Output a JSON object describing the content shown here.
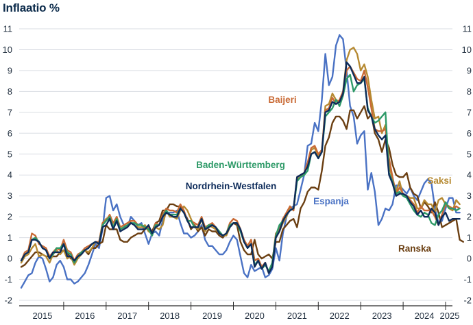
{
  "chart_data": {
    "type": "line",
    "title": "Inflaatio %",
    "xlabel": "",
    "ylabel": "",
    "ylim": [
      -2,
      11
    ],
    "yticks": [
      -2,
      -1,
      0,
      1,
      2,
      3,
      4,
      5,
      6,
      7,
      8,
      9,
      10,
      11
    ],
    "ytick_labels": [
      "-2",
      "-1",
      "0",
      "1",
      "2",
      "3",
      "4",
      "5",
      "6",
      "7",
      "8",
      "9",
      "10",
      "11"
    ],
    "x_start": 2015.0,
    "x_end": 2025.3,
    "x_step_months": 1,
    "year_labels": [
      "2015",
      "2016",
      "2017",
      "2018",
      "2019",
      "2020",
      "2021",
      "2022",
      "2023",
      "2024",
      "2025"
    ],
    "grid": true,
    "series": [
      {
        "name": "Espanja",
        "color": "#4a72c4",
        "values": [
          -1.4,
          -1.1,
          -0.8,
          -0.7,
          -0.2,
          0.1,
          0.0,
          -0.5,
          -1.1,
          -0.9,
          -0.3,
          -0.1,
          -0.4,
          -1.0,
          -1.0,
          -1.2,
          -1.1,
          -0.9,
          -0.7,
          -0.3,
          0.2,
          0.7,
          0.5,
          1.4,
          2.9,
          3.0,
          2.3,
          2.6,
          2.0,
          1.6,
          1.5,
          2.0,
          1.8,
          1.6,
          1.7,
          1.2,
          0.7,
          1.2,
          1.3,
          1.1,
          1.8,
          2.2,
          2.2,
          2.2,
          2.3,
          1.7,
          1.2,
          1.2,
          1.0,
          1.1,
          1.3,
          1.6,
          0.9,
          0.6,
          0.6,
          0.4,
          0.2,
          0.2,
          0.4,
          0.8,
          1.1,
          0.9,
          0.1,
          -0.7,
          -0.9,
          -0.3,
          -0.6,
          -0.5,
          -0.4,
          -0.9,
          -0.8,
          -0.5,
          0.5,
          -0.1,
          1.2,
          2.0,
          2.4,
          2.5,
          2.6,
          3.3,
          4.0,
          5.4,
          5.5,
          6.5,
          6.1,
          7.6,
          9.8,
          8.3,
          8.7,
          10.2,
          10.7,
          10.5,
          9.0,
          7.3,
          6.8,
          5.5,
          5.9,
          6.1,
          3.3,
          4.1,
          3.2,
          1.6,
          1.9,
          2.4,
          2.3,
          2.6,
          3.5,
          3.5,
          3.3,
          3.1,
          3.4,
          3.0,
          2.8,
          3.2,
          3.6,
          3.8,
          3.6,
          2.4,
          1.7,
          1.8,
          2.4,
          2.9,
          2.9,
          2.2,
          2.2
        ]
      },
      {
        "name": "Ranska",
        "color": "#6b3f12",
        "values": [
          -0.4,
          -0.3,
          -0.1,
          0.1,
          0.3,
          0.3,
          0.2,
          0.1,
          0.1,
          0.1,
          0.1,
          0.3,
          0.4,
          0.3,
          0.0,
          -0.1,
          0.1,
          0.3,
          0.4,
          0.2,
          0.5,
          0.5,
          0.7,
          0.8,
          1.6,
          1.4,
          1.4,
          1.4,
          0.9,
          0.8,
          0.8,
          1.0,
          1.1,
          1.2,
          1.2,
          1.4,
          1.5,
          1.3,
          1.7,
          1.8,
          2.3,
          2.3,
          2.6,
          2.6,
          2.5,
          2.5,
          2.2,
          1.9,
          1.4,
          1.6,
          1.3,
          1.5,
          1.1,
          1.4,
          1.3,
          1.3,
          1.1,
          1.0,
          1.2,
          1.6,
          1.7,
          1.6,
          0.8,
          0.4,
          0.2,
          0.2,
          0.9,
          0.2,
          0.0,
          0.1,
          0.2,
          0.0,
          0.8,
          0.8,
          1.4,
          1.6,
          1.8,
          1.9,
          1.5,
          2.4,
          2.7,
          3.2,
          3.4,
          3.4,
          3.3,
          4.2,
          5.4,
          5.8,
          6.5,
          6.8,
          6.8,
          6.6,
          6.2,
          7.1,
          7.1,
          6.7,
          7.0,
          7.3,
          6.7,
          6.9,
          6.0,
          5.7,
          5.1,
          5.7,
          5.3,
          4.5,
          4.0,
          3.9,
          3.9,
          4.1,
          3.4,
          3.1,
          3.0,
          2.4,
          2.7,
          2.5,
          2.2,
          2.7,
          2.2,
          1.5,
          1.6,
          1.7,
          1.8,
          1.9,
          0.9,
          0.8
        ]
      },
      {
        "name": "Saksi",
        "color": "#b68a32",
        "values": [
          -0.2,
          0.1,
          0.2,
          0.5,
          0.7,
          0.1,
          0.2,
          0.1,
          -0.2,
          0.2,
          0.4,
          0.2,
          0.4,
          0.0,
          0.1,
          -0.3,
          0.0,
          0.2,
          0.4,
          0.3,
          0.5,
          0.8,
          0.7,
          1.7,
          1.9,
          2.0,
          1.5,
          2.0,
          1.4,
          1.5,
          1.5,
          1.8,
          1.8,
          1.5,
          1.5,
          1.6,
          1.3,
          1.2,
          1.5,
          1.4,
          1.6,
          2.3,
          2.0,
          2.0,
          1.9,
          2.3,
          2.5,
          2.3,
          1.9,
          1.5,
          1.4,
          1.9,
          1.3,
          1.6,
          1.5,
          1.4,
          1.2,
          1.1,
          1.1,
          1.5,
          1.7,
          1.7,
          1.4,
          0.8,
          0.6,
          0.9,
          -0.1,
          0.0,
          -0.4,
          -0.2,
          -0.7,
          -0.3,
          1.0,
          1.3,
          1.7,
          2.0,
          2.5,
          2.3,
          3.8,
          3.9,
          4.1,
          4.5,
          5.2,
          5.3,
          4.9,
          5.1,
          7.3,
          7.4,
          7.9,
          7.6,
          7.5,
          8.0,
          9.5,
          10.0,
          10.1,
          9.8,
          9.0,
          9.3,
          8.7,
          7.6,
          6.7,
          6.8,
          6.0,
          6.4,
          4.5,
          3.8,
          3.2,
          3.7,
          3.0,
          3.0,
          2.9,
          2.9,
          2.4,
          2.4,
          2.8,
          2.6,
          2.6,
          2.2,
          2.8,
          2.9,
          2.6,
          2.4,
          2.3,
          2.8,
          2.6
        ]
      },
      {
        "name": "Baijeri",
        "color": "#c96a35",
        "values": [
          -0.1,
          0.3,
          0.4,
          1.2,
          1.1,
          0.7,
          0.6,
          0.5,
          0.1,
          0.3,
          0.5,
          0.4,
          0.9,
          0.4,
          0.3,
          -0.1,
          0.2,
          0.3,
          0.5,
          0.6,
          0.7,
          0.8,
          0.8,
          1.7,
          1.8,
          2.1,
          1.7,
          2.0,
          1.5,
          1.6,
          1.7,
          1.8,
          1.8,
          1.6,
          1.6,
          1.4,
          1.5,
          1.1,
          1.7,
          1.6,
          2.1,
          2.4,
          2.3,
          2.3,
          2.2,
          2.6,
          2.3,
          1.8,
          1.8,
          1.7,
          1.6,
          2.0,
          1.5,
          1.6,
          1.7,
          1.5,
          1.3,
          1.1,
          1.2,
          1.7,
          1.9,
          1.8,
          1.4,
          0.9,
          0.6,
          0.9,
          -0.1,
          0.0,
          -0.4,
          -0.2,
          -0.7,
          -0.2,
          1.2,
          1.4,
          1.9,
          2.2,
          2.5,
          2.3,
          3.9,
          4.0,
          4.1,
          4.6,
          5.3,
          5.4,
          5.0,
          5.2,
          7.1,
          7.2,
          7.7,
          7.4,
          7.6,
          8.0,
          9.0,
          9.2,
          8.9,
          8.6,
          8.5,
          9.0,
          8.2,
          7.2,
          6.2,
          6.1,
          6.1,
          6.2,
          4.8,
          3.9,
          3.1,
          3.4,
          3.1,
          3.0,
          2.8,
          2.6,
          2.2,
          2.5,
          2.3,
          2.3,
          2.3,
          2.0,
          1.6,
          2.1,
          2.6,
          2.5,
          2.4,
          2.5,
          2.4
        ]
      },
      {
        "name": "Baden-Württemberg",
        "color": "#2e9a68",
        "values": [
          -0.1,
          0.2,
          0.3,
          0.9,
          1.0,
          0.8,
          0.5,
          0.4,
          0.0,
          0.2,
          0.5,
          0.5,
          0.7,
          0.3,
          0.2,
          -0.2,
          0.1,
          0.3,
          0.4,
          0.5,
          0.7,
          0.8,
          0.7,
          1.6,
          1.8,
          2.0,
          1.5,
          1.9,
          1.4,
          1.5,
          1.6,
          1.7,
          1.7,
          1.6,
          1.6,
          1.5,
          1.4,
          1.1,
          1.6,
          1.6,
          2.0,
          2.3,
          2.1,
          2.1,
          2.1,
          2.4,
          2.2,
          1.8,
          1.8,
          1.5,
          1.5,
          1.9,
          1.4,
          1.6,
          1.6,
          1.5,
          1.3,
          1.1,
          1.2,
          1.6,
          1.7,
          1.7,
          1.3,
          0.8,
          0.5,
          0.7,
          -0.3,
          -0.1,
          -0.5,
          -0.3,
          -0.6,
          -0.2,
          1.1,
          1.6,
          1.8,
          2.1,
          2.3,
          2.4,
          3.7,
          3.9,
          4.0,
          4.2,
          5.0,
          5.1,
          4.8,
          5.1,
          6.8,
          7.0,
          7.2,
          7.6,
          7.3,
          7.8,
          8.6,
          8.8,
          8.0,
          8.3,
          8.4,
          8.6,
          7.2,
          6.8,
          6.5,
          6.6,
          6.8,
          7.0,
          4.1,
          3.7,
          3.1,
          3.2,
          3.0,
          2.9,
          2.6,
          2.3,
          2.1,
          2.0,
          2.2,
          2.1,
          1.7,
          1.6,
          2.1,
          2.3,
          2.7,
          2.4,
          2.4,
          2.3,
          2.4
        ]
      },
      {
        "name": "Nordrhein-Westfalen",
        "color": "#0d2b5a",
        "values": [
          -0.1,
          0.2,
          0.3,
          0.9,
          0.9,
          0.8,
          0.5,
          0.4,
          0.0,
          0.3,
          0.3,
          0.3,
          0.7,
          0.1,
          0.1,
          -0.1,
          0.1,
          0.2,
          0.4,
          0.5,
          0.7,
          0.8,
          0.7,
          1.5,
          1.6,
          1.9,
          1.4,
          1.8,
          1.3,
          1.4,
          1.5,
          1.7,
          1.6,
          1.4,
          1.4,
          1.4,
          1.6,
          1.2,
          1.5,
          1.6,
          2.0,
          2.2,
          2.1,
          2.0,
          2.0,
          2.4,
          2.2,
          1.8,
          1.5,
          1.5,
          1.5,
          1.9,
          1.4,
          1.5,
          1.6,
          1.5,
          1.2,
          1.1,
          1.2,
          1.5,
          1.7,
          1.7,
          1.4,
          0.8,
          0.5,
          0.7,
          -0.4,
          -0.1,
          -0.5,
          -0.2,
          -0.7,
          -0.4,
          1.0,
          1.3,
          1.8,
          2.1,
          2.3,
          2.4,
          3.9,
          4.0,
          4.1,
          4.4,
          5.0,
          5.1,
          4.8,
          5.1,
          7.0,
          7.1,
          7.5,
          7.4,
          7.5,
          7.9,
          9.4,
          9.2,
          8.8,
          8.4,
          8.4,
          8.7,
          7.1,
          6.8,
          6.2,
          5.9,
          5.7,
          5.9,
          4.0,
          3.6,
          3.0,
          3.1,
          3.1,
          3.0,
          2.7,
          2.5,
          2.1,
          2.3,
          2.0,
          2.0,
          2.4,
          2.2,
          1.6,
          2.0,
          2.2,
          1.8,
          1.9,
          1.9,
          1.9
        ]
      }
    ],
    "annotations": [
      "Baijeri",
      "Baden-Württemberg",
      "Nordrhein-Westfalen",
      "Espanja",
      "Saksi",
      "Ranska"
    ]
  }
}
